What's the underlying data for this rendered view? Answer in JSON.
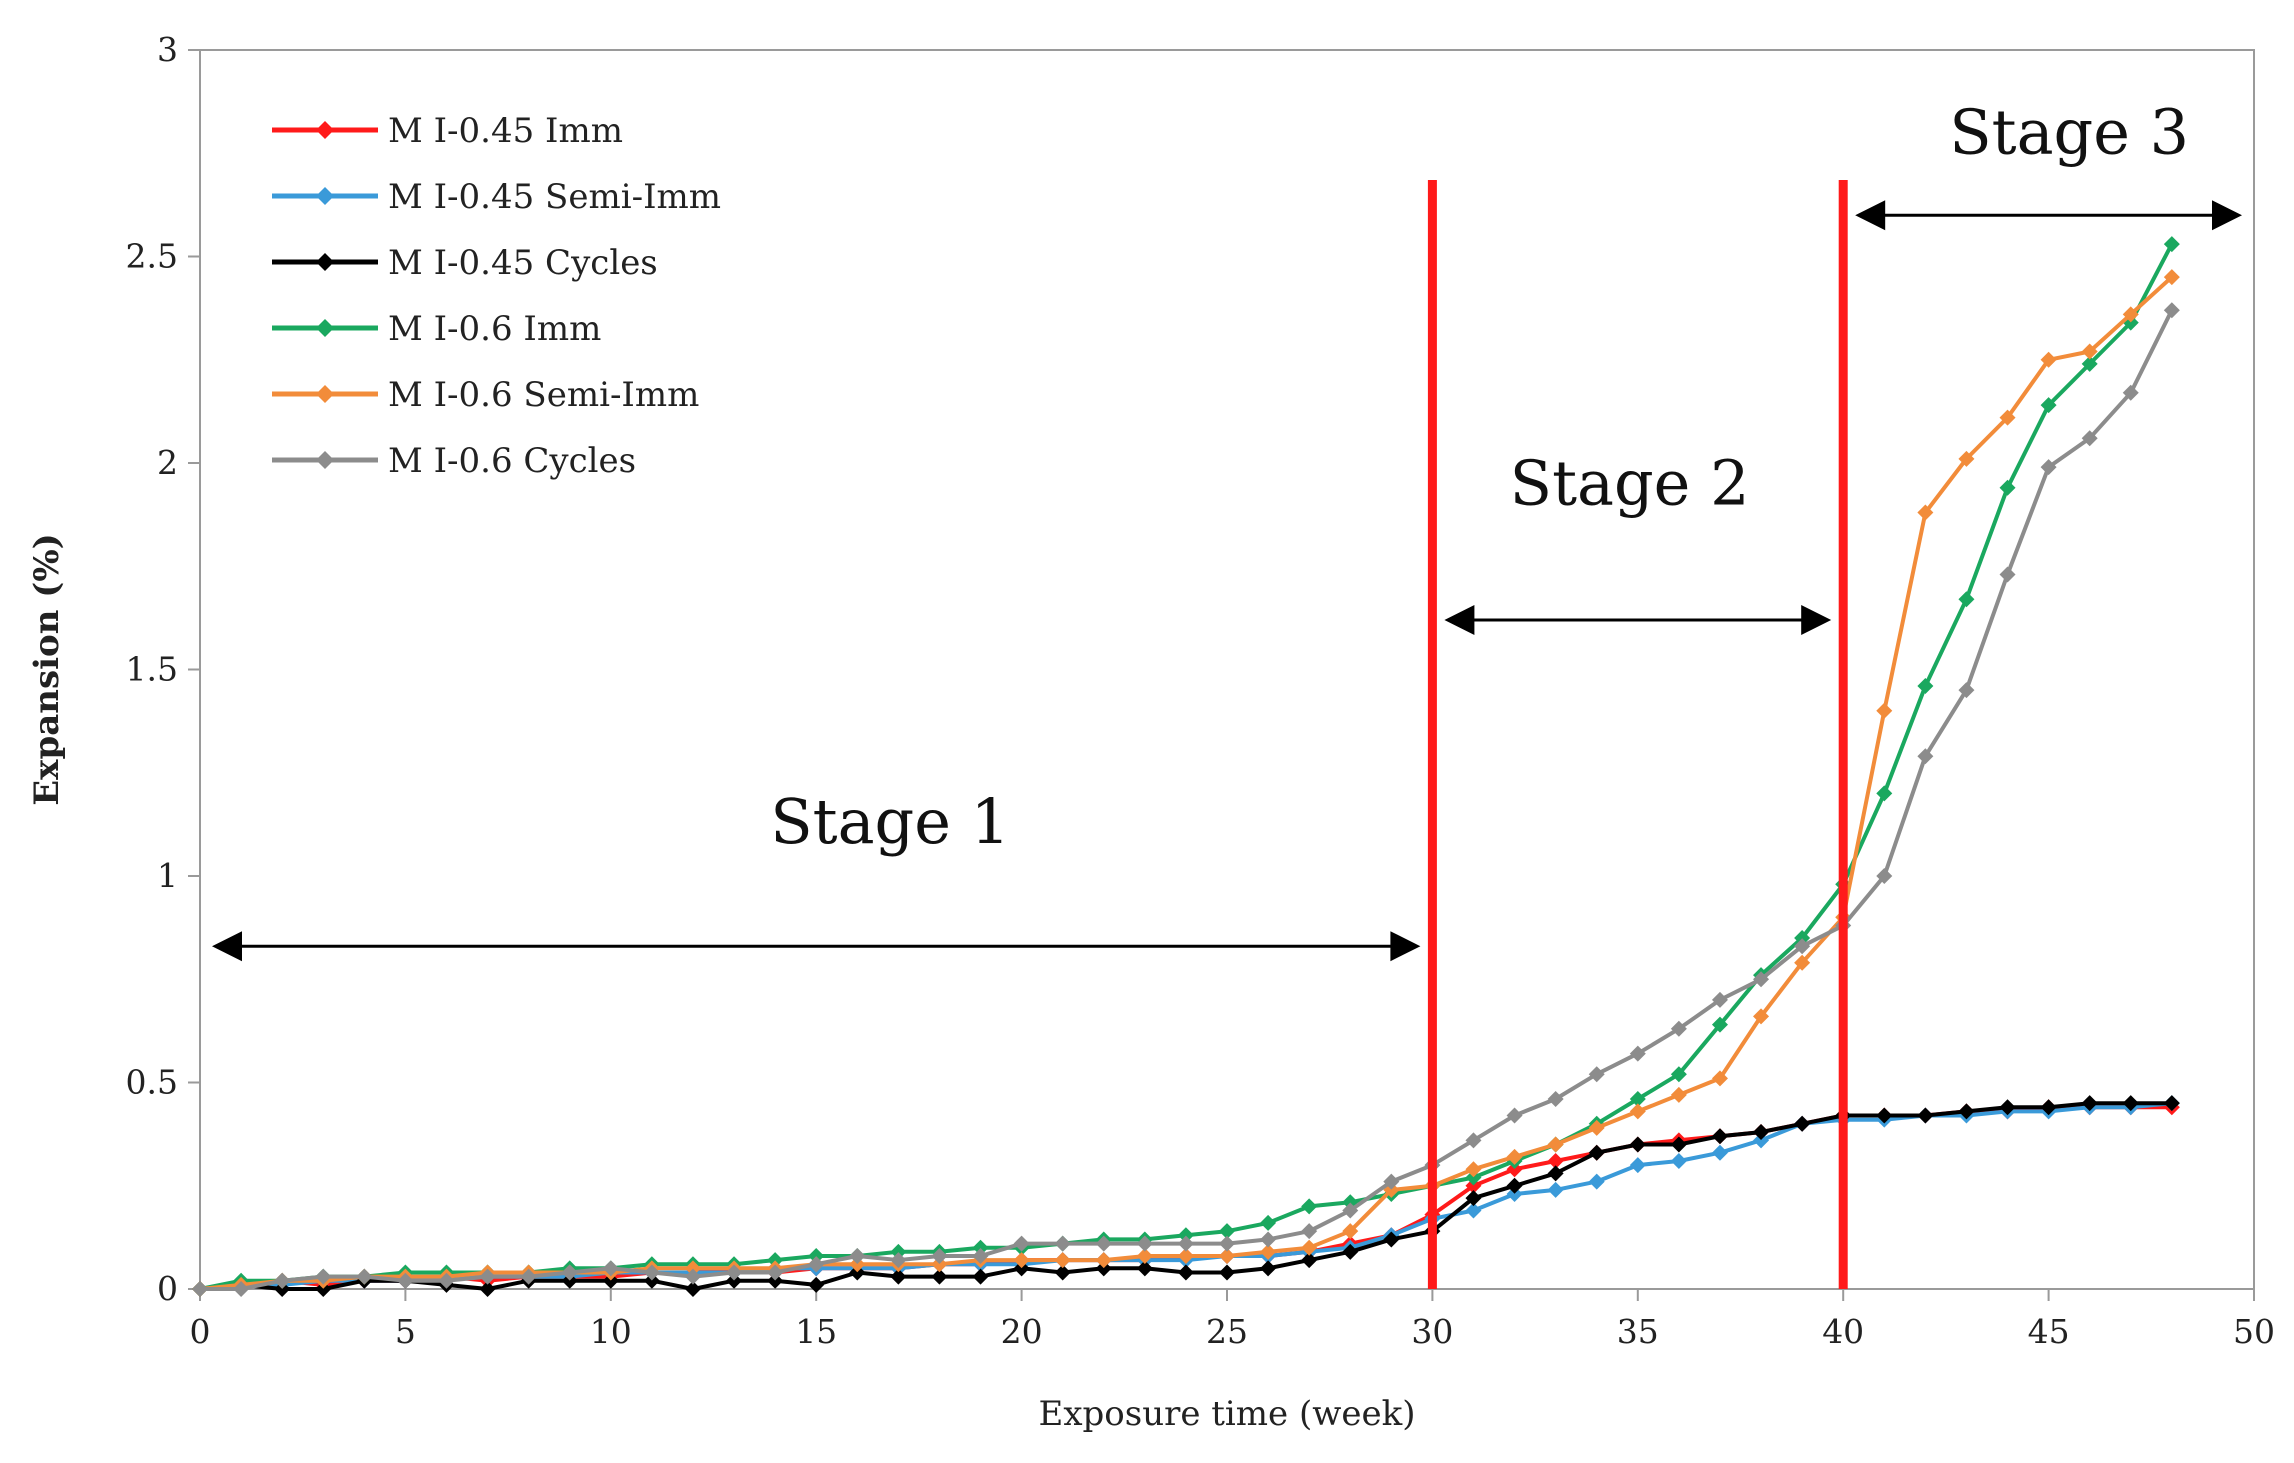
{
  "chart_data": {
    "type": "line",
    "title": "",
    "xlabel": "Exposure time (week)",
    "ylabel": "Expansion (%)",
    "xlim": [
      0,
      50
    ],
    "ylim": [
      0,
      3
    ],
    "xticks": [
      0,
      5,
      10,
      15,
      20,
      25,
      30,
      35,
      40,
      45,
      50
    ],
    "yticks": [
      0,
      0.5,
      1,
      1.5,
      2,
      2.5,
      3
    ],
    "xtick_labels": [
      "0",
      "5",
      "10",
      "15",
      "20",
      "25",
      "30",
      "35",
      "40",
      "45",
      "50"
    ],
    "ytick_labels": [
      "0",
      "0.5",
      "1",
      "1.5",
      "2",
      "2.5",
      "3"
    ],
    "grid": false,
    "legend_position": "top-left",
    "x": [
      0,
      1,
      2,
      3,
      4,
      5,
      6,
      7,
      8,
      9,
      10,
      11,
      12,
      13,
      14,
      15,
      16,
      17,
      18,
      19,
      20,
      21,
      22,
      23,
      24,
      25,
      26,
      27,
      28,
      29,
      30,
      31,
      32,
      33,
      34,
      35,
      36,
      37,
      38,
      39,
      40,
      41,
      42,
      43,
      44,
      45,
      46,
      47,
      48
    ],
    "series": [
      {
        "name": "M I-0.45 Imm",
        "color": "#ff1a1a",
        "values": [
          0.0,
          0.01,
          0.02,
          0.01,
          0.02,
          0.02,
          0.03,
          0.02,
          0.03,
          0.03,
          0.03,
          0.04,
          0.04,
          0.05,
          0.04,
          0.05,
          0.05,
          0.05,
          0.06,
          0.06,
          0.07,
          0.07,
          0.07,
          0.07,
          0.08,
          0.08,
          0.08,
          0.09,
          0.11,
          0.13,
          0.18,
          0.25,
          0.29,
          0.31,
          0.33,
          0.35,
          0.36,
          0.37,
          0.38,
          0.4,
          0.42,
          0.42,
          0.42,
          0.43,
          0.43,
          0.44,
          0.44,
          0.44,
          0.44
        ]
      },
      {
        "name": "M I-0.45 Semi-Imm",
        "color": "#3a9ad9",
        "values": [
          0.0,
          0.01,
          0.01,
          0.02,
          0.02,
          0.02,
          0.03,
          0.03,
          0.03,
          0.03,
          0.04,
          0.04,
          0.04,
          0.04,
          0.05,
          0.05,
          0.05,
          0.05,
          0.06,
          0.06,
          0.06,
          0.07,
          0.07,
          0.07,
          0.07,
          0.08,
          0.08,
          0.09,
          0.1,
          0.13,
          0.17,
          0.19,
          0.23,
          0.24,
          0.26,
          0.3,
          0.31,
          0.33,
          0.36,
          0.4,
          0.41,
          0.41,
          0.42,
          0.42,
          0.43,
          0.43,
          0.44,
          0.44,
          0.45
        ]
      },
      {
        "name": "M I-0.45 Cycles",
        "color": "#000000",
        "values": [
          0.0,
          0.01,
          0.0,
          0.0,
          0.02,
          0.02,
          0.01,
          0.0,
          0.02,
          0.02,
          0.02,
          0.02,
          0.0,
          0.02,
          0.02,
          0.01,
          0.04,
          0.03,
          0.03,
          0.03,
          0.05,
          0.04,
          0.05,
          0.05,
          0.04,
          0.04,
          0.05,
          0.07,
          0.09,
          0.12,
          0.14,
          0.22,
          0.25,
          0.28,
          0.33,
          0.35,
          0.35,
          0.37,
          0.38,
          0.4,
          0.42,
          0.42,
          0.42,
          0.43,
          0.44,
          0.44,
          0.45,
          0.45,
          0.45
        ]
      },
      {
        "name": "M I-0.6 Imm",
        "color": "#1aa85f",
        "values": [
          0.0,
          0.02,
          0.02,
          0.03,
          0.03,
          0.04,
          0.04,
          0.04,
          0.04,
          0.05,
          0.05,
          0.06,
          0.06,
          0.06,
          0.07,
          0.08,
          0.08,
          0.09,
          0.09,
          0.1,
          0.1,
          0.11,
          0.12,
          0.12,
          0.13,
          0.14,
          0.16,
          0.2,
          0.21,
          0.23,
          0.25,
          0.27,
          0.31,
          0.35,
          0.4,
          0.46,
          0.52,
          0.64,
          0.76,
          0.85,
          0.98,
          1.2,
          1.46,
          1.67,
          1.94,
          2.14,
          2.24,
          2.34,
          2.53
        ]
      },
      {
        "name": "M I-0.6 Semi-Imm",
        "color": "#f28c3a",
        "values": [
          0.0,
          0.01,
          0.02,
          0.02,
          0.03,
          0.03,
          0.03,
          0.04,
          0.04,
          0.04,
          0.04,
          0.05,
          0.05,
          0.05,
          0.05,
          0.06,
          0.06,
          0.06,
          0.06,
          0.07,
          0.07,
          0.07,
          0.07,
          0.08,
          0.08,
          0.08,
          0.09,
          0.1,
          0.14,
          0.24,
          0.25,
          0.29,
          0.32,
          0.35,
          0.39,
          0.43,
          0.47,
          0.51,
          0.66,
          0.79,
          0.9,
          1.4,
          1.88,
          2.01,
          2.11,
          2.25,
          2.27,
          2.36,
          2.45
        ]
      },
      {
        "name": "M I-0.6 Cycles",
        "color": "#8c8c8c",
        "values": [
          0.0,
          0.0,
          0.02,
          0.03,
          0.03,
          0.02,
          0.02,
          0.03,
          0.03,
          0.04,
          0.05,
          0.04,
          0.03,
          0.04,
          0.04,
          0.06,
          0.08,
          0.07,
          0.08,
          0.08,
          0.11,
          0.11,
          0.11,
          0.11,
          0.11,
          0.11,
          0.12,
          0.14,
          0.19,
          0.26,
          0.3,
          0.36,
          0.42,
          0.46,
          0.52,
          0.57,
          0.63,
          0.7,
          0.75,
          0.83,
          0.88,
          1.0,
          1.29,
          1.45,
          1.73,
          1.99,
          2.06,
          2.17,
          2.37
        ]
      }
    ],
    "stage_boundaries": [
      30,
      40
    ],
    "boundary_color": "#ff1a1a",
    "annotations": [
      {
        "text": "Stage 1",
        "x_from": 0,
        "x_to": 30,
        "arrow_y": 0.83,
        "label_x": 16.8,
        "label_y": 1.08
      },
      {
        "text": "Stage 2",
        "x_from": 30,
        "x_to": 40,
        "arrow_y": 1.62,
        "label_x": 34.8,
        "label_y": 1.9
      },
      {
        "text": "Stage 3",
        "x_from": 40,
        "x_to": 50,
        "arrow_y": 2.6,
        "label_x": 45.5,
        "label_y": 2.75
      }
    ]
  }
}
